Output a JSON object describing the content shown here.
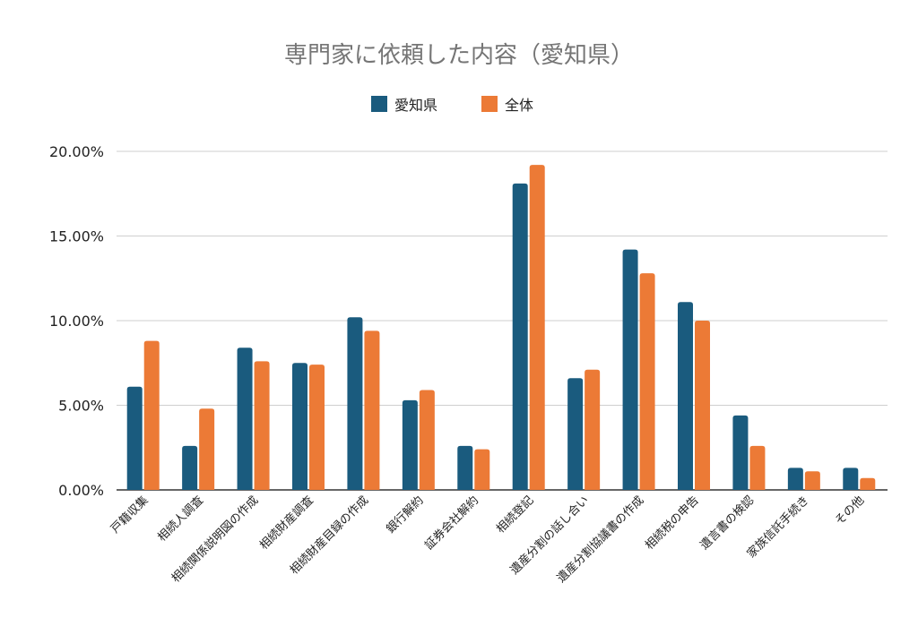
{
  "chart_data": {
    "type": "bar",
    "title": "専門家に依頼した内容（愛知県）",
    "legend_position": "top-center",
    "grid": true,
    "ylim": [
      0,
      20
    ],
    "yticks": [
      0,
      5,
      10,
      15,
      20
    ],
    "ytick_labels": [
      "0.00%",
      "5.00%",
      "10.00%",
      "15.00%",
      "20.00%"
    ],
    "xlabel": "",
    "ylabel": "",
    "categories": [
      "戸籍収集",
      "相続人調査",
      "相続関係説明図の作成",
      "相続財産調査",
      "相続財産目録の作成",
      "銀行解約",
      "証券会社解約",
      "相続登記",
      "遺産分割の話し合い",
      "遺産分割協議書の作成",
      "相続税の申告",
      "遺言書の検認",
      "家族信託手続き",
      "その他"
    ],
    "series": [
      {
        "name": "愛知県",
        "color": "#1a5b7e",
        "values": [
          6.1,
          2.6,
          8.4,
          7.5,
          10.2,
          5.3,
          2.6,
          18.1,
          6.6,
          14.2,
          11.1,
          4.4,
          1.3,
          1.3
        ]
      },
      {
        "name": "全体",
        "color": "#ec7a36",
        "values": [
          8.8,
          4.8,
          7.6,
          7.4,
          9.4,
          5.9,
          2.4,
          19.2,
          7.1,
          12.8,
          10.0,
          2.6,
          1.1,
          0.7
        ]
      }
    ]
  }
}
